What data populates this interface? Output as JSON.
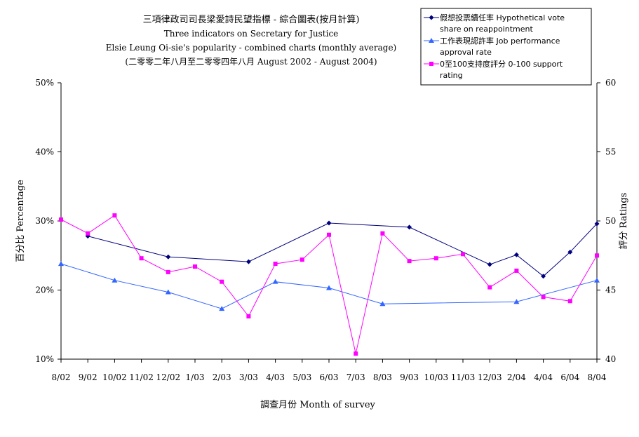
{
  "chart_data": {
    "type": "line",
    "title": [
      "三項律政司司長梁愛詩民望指標 - 綜合圖表(按月計算)",
      "Three indicators on Secretary for Justice",
      "Elsie Leung Oi-sie's popularity - combined charts (monthly average)",
      "(二零零二年八月至二零零四年八月 August 2002 - August 2004)"
    ],
    "xlabel": "調查月份 Month of survey",
    "ylabel_left": "百分比 Percentage",
    "ylabel_right": "評分 Ratings",
    "categories": [
      "8/02",
      "9/02",
      "10/02",
      "11/02",
      "12/02",
      "1/03",
      "2/03",
      "3/03",
      "4/03",
      "5/03",
      "6/03",
      "7/03",
      "8/03",
      "9/03",
      "10/03",
      "11/03",
      "12/03",
      "2/04",
      "4/04",
      "6/04",
      "8/04"
    ],
    "y_left": {
      "range": [
        10,
        50
      ],
      "ticks": [
        "10%",
        "20%",
        "30%",
        "40%",
        "50%"
      ],
      "tick_values": [
        10,
        20,
        30,
        40,
        50
      ]
    },
    "y_right": {
      "range": [
        40,
        60
      ],
      "ticks": [
        "40",
        "45",
        "50",
        "55",
        "60"
      ],
      "tick_values": [
        40,
        45,
        50,
        55,
        60
      ]
    },
    "grid": false,
    "legend_position": "top-right",
    "series": [
      {
        "name": [
          "假想投票續任率 Hypothetical vote",
          "share on reappointment"
        ],
        "axis": "left",
        "color": "#00007f",
        "marker": "diamond",
        "points": [
          [
            "9/02",
            27.8
          ],
          [
            "12/02",
            24.8
          ],
          [
            "3/03",
            24.1
          ],
          [
            "6/03",
            29.7
          ],
          [
            "9/03",
            29.1
          ],
          [
            "12/03",
            23.7
          ],
          [
            "2/04",
            25.1
          ],
          [
            "4/04",
            22.0
          ],
          [
            "6/04",
            25.5
          ],
          [
            "8/04",
            29.6
          ]
        ]
      },
      {
        "name": [
          "工作表現認許率 Job performance",
          "approval rate"
        ],
        "axis": "left",
        "color": "#3366ff",
        "marker": "triangle",
        "points": [
          [
            "8/02",
            23.8
          ],
          [
            "10/02",
            21.4
          ],
          [
            "12/02",
            19.7
          ],
          [
            "2/03",
            17.3
          ],
          [
            "4/03",
            21.2
          ],
          [
            "6/03",
            20.3
          ],
          [
            "8/03",
            18.0
          ],
          [
            "2/04",
            18.3
          ],
          [
            "8/04",
            21.4
          ]
        ]
      },
      {
        "name": [
          "0至100支持度評分 0-100 support",
          "rating"
        ],
        "axis": "right",
        "color": "#ff00ff",
        "marker": "square",
        "points": [
          [
            "8/02",
            50.1
          ],
          [
            "9/02",
            49.1
          ],
          [
            "10/02",
            50.4
          ],
          [
            "11/02",
            47.3
          ],
          [
            "12/02",
            46.3
          ],
          [
            "1/03",
            46.7
          ],
          [
            "2/03",
            45.6
          ],
          [
            "3/03",
            43.1
          ],
          [
            "4/03",
            46.9
          ],
          [
            "5/03",
            47.2
          ],
          [
            "6/03",
            49.0
          ],
          [
            "7/03",
            40.4
          ],
          [
            "8/03",
            49.1
          ],
          [
            "9/03",
            47.1
          ],
          [
            "10/03",
            47.3
          ],
          [
            "11/03",
            47.6
          ],
          [
            "12/03",
            45.2
          ],
          [
            "2/04",
            46.4
          ],
          [
            "4/04",
            44.5
          ],
          [
            "6/04",
            44.2
          ],
          [
            "8/04",
            47.5
          ]
        ]
      }
    ]
  }
}
